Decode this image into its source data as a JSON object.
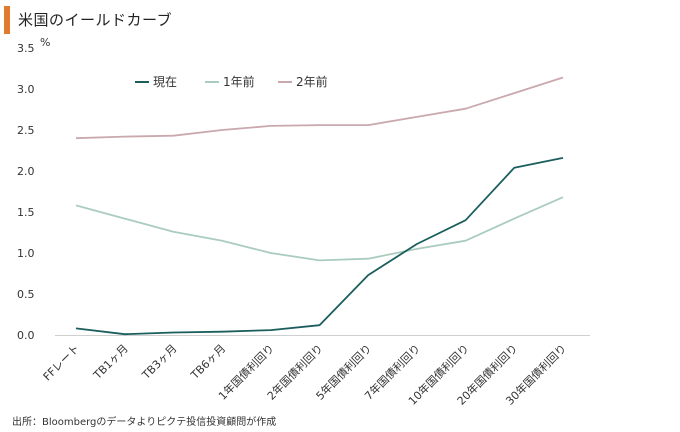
{
  "title": "米国のイールドカーブ",
  "source": "出所：Bloombergのデータよりピクテ投信投資顧問が作成",
  "chart_data": {
    "type": "line",
    "title": "米国のイールドカーブ",
    "yunit": "%",
    "ylim": [
      0,
      3.5
    ],
    "yticks": [
      "0.0",
      "0.5",
      "1.0",
      "1.5",
      "2.0",
      "2.5",
      "3.0",
      "3.5"
    ],
    "categories": [
      "FFレート",
      "TB1ヶ月",
      "TB3ヶ月",
      "TB6ヶ月",
      "1年国債利回り",
      "2年国債利回り",
      "5年国債利回り",
      "7年国債利回り",
      "10年国債利回り",
      "20年国債利回り",
      "30年国債利回り"
    ],
    "grid": false,
    "legend_position": "top-left",
    "series": [
      {
        "name": "現在",
        "color": "#1B5E5E",
        "values": [
          0.08,
          0.01,
          0.03,
          0.04,
          0.06,
          0.12,
          0.73,
          1.11,
          1.4,
          2.04,
          2.16
        ]
      },
      {
        "name": "1年前",
        "color": "#A9CCBF",
        "values": [
          1.58,
          1.42,
          1.26,
          1.15,
          1.0,
          0.91,
          0.93,
          1.05,
          1.15,
          1.42,
          1.68
        ]
      },
      {
        "name": "2年前",
        "color": "#C9A9AE",
        "values": [
          2.4,
          2.42,
          2.43,
          2.5,
          2.55,
          2.56,
          2.56,
          2.66,
          2.76,
          2.95,
          3.14
        ]
      }
    ]
  }
}
